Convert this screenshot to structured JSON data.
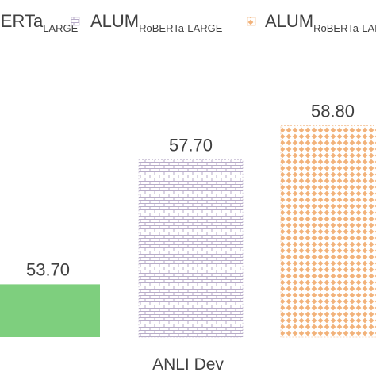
{
  "chart_data": {
    "type": "bar",
    "categories": [
      "ANLI Dev"
    ],
    "series": [
      {
        "name": "RoBERTa",
        "name_subscript": "LARGE",
        "values": [
          53.7
        ],
        "value_label": "53.70",
        "color": "#7ecf7e",
        "pattern": "solid"
      },
      {
        "name": "ALUM",
        "name_subscript": "RoBERTa-LARGE",
        "values": [
          57.7
        ],
        "value_label": "57.70",
        "color": "#b7abc8",
        "pattern": "brick"
      },
      {
        "name": "ALUM",
        "name_subscript": "RoBERTa-LARGE-SMART",
        "values": [
          58.8
        ],
        "value_label": "58.80",
        "color": "#f2b27a",
        "pattern": "diamond-dots"
      }
    ],
    "ylim": [
      52.0,
      60.5
    ],
    "grid": false,
    "legend_position": "top"
  }
}
